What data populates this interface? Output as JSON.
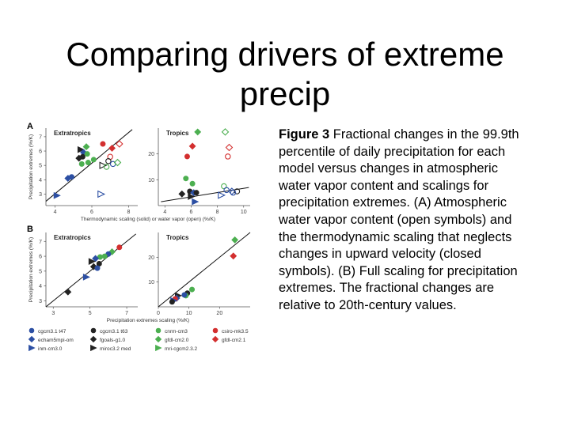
{
  "slide": {
    "title": "Comparing drivers of extreme precip"
  },
  "caption": {
    "label": "Figure 3",
    "text": " Fractional changes in the 99.9th percentile of daily precipitation for each model versus changes in atmospheric water vapor content and scalings for precipitation extremes. (A) Atmospheric water vapor content (open symbols) and the thermodynamic scaling that neglects changes in upward velocity (closed symbols). (B) Full scaling for precipitation extremes. The fractional changes are relative to 20th-century values."
  },
  "figure": {
    "panel_labels": [
      "A",
      "B"
    ],
    "legend": [
      {
        "label": "cgcm3.1 t47",
        "color": "#2c4fa3",
        "shape": "circle"
      },
      {
        "label": "cgcm3.1 t63",
        "color": "#222222",
        "shape": "circle"
      },
      {
        "label": "cnrm-cm3",
        "color": "#4caf50",
        "shape": "circle"
      },
      {
        "label": "csiro-mk3.5",
        "color": "#d32f2f",
        "shape": "circle"
      },
      {
        "label": "echam5mpi-om",
        "color": "#2c4fa3",
        "shape": "diamond"
      },
      {
        "label": "fgoals-g1.0",
        "color": "#222222",
        "shape": "diamond"
      },
      {
        "label": "gfdl-cm2.0",
        "color": "#4caf50",
        "shape": "diamond"
      },
      {
        "label": "gfdl-cm2.1",
        "color": "#d32f2f",
        "shape": "diamond"
      },
      {
        "label": "inm-cm3.0",
        "color": "#2c4fa3",
        "shape": "triangle"
      },
      {
        "label": "miroc3.2 med",
        "color": "#222222",
        "shape": "triangle"
      },
      {
        "label": "mri-cgcm2.3.2",
        "color": "#4caf50",
        "shape": "triangle"
      }
    ]
  },
  "chart_data": [
    {
      "type": "scatter",
      "panel": "A",
      "title": "Extratropics",
      "ylabel": "Precipitation extremes (%/K)",
      "xlim": [
        3.5,
        8.5
      ],
      "ylim": [
        2.2,
        7.6
      ],
      "xticks": [
        4,
        6,
        8
      ],
      "yticks": [
        3,
        4,
        5,
        6,
        7
      ],
      "fit_line": {
        "from": [
          3.5,
          2.5
        ],
        "to": [
          8.2,
          7.5
        ]
      },
      "series": [
        {
          "filled": true,
          "points": [
            {
              "x": 5.4,
              "y": 6.1,
              "c": "#222222",
              "s": "triangle"
            },
            {
              "x": 5.55,
              "y": 5.9,
              "c": "#2c4fa3",
              "s": "diamond"
            },
            {
              "x": 5.75,
              "y": 5.8,
              "c": "#4caf50",
              "s": "circle"
            },
            {
              "x": 5.7,
              "y": 6.3,
              "c": "#4caf50",
              "s": "diamond"
            },
            {
              "x": 5.5,
              "y": 5.6,
              "c": "#222222",
              "s": "circle"
            },
            {
              "x": 5.3,
              "y": 5.5,
              "c": "#222222",
              "s": "diamond"
            },
            {
              "x": 5.45,
              "y": 5.1,
              "c": "#4caf50",
              "s": "circle"
            },
            {
              "x": 5.8,
              "y": 5.2,
              "c": "#4caf50",
              "s": "circle"
            },
            {
              "x": 4.9,
              "y": 4.2,
              "c": "#2c4fa3",
              "s": "circle"
            },
            {
              "x": 4.7,
              "y": 4.1,
              "c": "#2c4fa3",
              "s": "diamond"
            },
            {
              "x": 6.6,
              "y": 6.5,
              "c": "#d32f2f",
              "s": "circle"
            },
            {
              "x": 7.1,
              "y": 6.2,
              "c": "#d32f2f",
              "s": "diamond"
            },
            {
              "x": 6.1,
              "y": 5.4,
              "c": "#4caf50",
              "s": "circle"
            },
            {
              "x": 4.1,
              "y": 2.9,
              "c": "#2c4fa3",
              "s": "triangle"
            }
          ]
        },
        {
          "filled": false,
          "points": [
            {
              "x": 7.5,
              "y": 6.5,
              "c": "#d32f2f",
              "s": "diamond"
            },
            {
              "x": 7.0,
              "y": 5.6,
              "c": "#d32f2f",
              "s": "circle"
            },
            {
              "x": 6.9,
              "y": 5.3,
              "c": "#222222",
              "s": "circle"
            },
            {
              "x": 7.15,
              "y": 5.1,
              "c": "#2c4fa3",
              "s": "circle"
            },
            {
              "x": 7.4,
              "y": 5.2,
              "c": "#4caf50",
              "s": "diamond"
            },
            {
              "x": 6.6,
              "y": 5.0,
              "c": "#222222",
              "s": "triangle"
            },
            {
              "x": 6.8,
              "y": 4.9,
              "c": "#4caf50",
              "s": "circle"
            },
            {
              "x": 6.5,
              "y": 3.0,
              "c": "#2c4fa3",
              "s": "triangle"
            }
          ]
        }
      ]
    },
    {
      "type": "scatter",
      "panel": "A",
      "title": "Tropics",
      "xlabel": "Thermodynamic scaling (solid) or water vapor (open) (%/K)",
      "xlim": [
        3.5,
        10.5
      ],
      "ylim": [
        0,
        30
      ],
      "xticks": [
        4,
        6,
        8,
        10
      ],
      "yticks": [
        10,
        20
      ],
      "fit_line": {
        "from": [
          3.7,
          1.5
        ],
        "to": [
          10.4,
          7
        ]
      },
      "series": [
        {
          "filled": true,
          "points": [
            {
              "x": 6.5,
              "y": 28.5,
              "c": "#4caf50",
              "s": "diamond"
            },
            {
              "x": 6.1,
              "y": 23,
              "c": "#d32f2f",
              "s": "diamond"
            },
            {
              "x": 5.7,
              "y": 19,
              "c": "#d32f2f",
              "s": "circle"
            },
            {
              "x": 5.6,
              "y": 10.5,
              "c": "#4caf50",
              "s": "circle"
            },
            {
              "x": 6.1,
              "y": 8.5,
              "c": "#4caf50",
              "s": "circle"
            },
            {
              "x": 5.9,
              "y": 5.5,
              "c": "#222222",
              "s": "circle"
            },
            {
              "x": 6.2,
              "y": 5,
              "c": "#2c4fa3",
              "s": "diamond"
            },
            {
              "x": 6.4,
              "y": 5,
              "c": "#222222",
              "s": "circle"
            },
            {
              "x": 6.0,
              "y": 3.5,
              "c": "#222222",
              "s": "triangle"
            },
            {
              "x": 5.3,
              "y": 4.5,
              "c": "#222222",
              "s": "diamond"
            },
            {
              "x": 6.3,
              "y": 1.5,
              "c": "#2c4fa3",
              "s": "triangle"
            }
          ]
        },
        {
          "filled": false,
          "points": [
            {
              "x": 8.6,
              "y": 28.5,
              "c": "#4caf50",
              "s": "diamond"
            },
            {
              "x": 8.9,
              "y": 22.5,
              "c": "#d32f2f",
              "s": "diamond"
            },
            {
              "x": 8.8,
              "y": 19,
              "c": "#d32f2f",
              "s": "circle"
            },
            {
              "x": 8.5,
              "y": 7.5,
              "c": "#4caf50",
              "s": "circle"
            },
            {
              "x": 8.7,
              "y": 6,
              "c": "#2c4fa3",
              "s": "circle"
            },
            {
              "x": 9.1,
              "y": 5.5,
              "c": "#2c4fa3",
              "s": "diamond"
            },
            {
              "x": 9.5,
              "y": 5.5,
              "c": "#222222",
              "s": "circle"
            },
            {
              "x": 9.2,
              "y": 5,
              "c": "#2c4fa3",
              "s": "circle"
            },
            {
              "x": 8.3,
              "y": 4,
              "c": "#2c4fa3",
              "s": "triangle"
            }
          ]
        }
      ]
    },
    {
      "type": "scatter",
      "panel": "B",
      "title": "Extratropics",
      "ylabel": "Precipitation extremes (%/K)",
      "xlim": [
        2.6,
        7.6
      ],
      "ylim": [
        2.6,
        7.6
      ],
      "xticks": [
        3,
        5,
        7
      ],
      "yticks": [
        3,
        4,
        5,
        6,
        7
      ],
      "fit_line": {
        "from": [
          2.6,
          2.6
        ],
        "to": [
          7.5,
          7.5
        ]
      },
      "series": [
        {
          "filled": true,
          "points": [
            {
              "x": 6.6,
              "y": 6.6,
              "c": "#d32f2f",
              "s": "circle"
            },
            {
              "x": 6.2,
              "y": 6.3,
              "c": "#4caf50",
              "s": "diamond"
            },
            {
              "x": 6.0,
              "y": 6.15,
              "c": "#2c4fa3",
              "s": "circle"
            },
            {
              "x": 5.8,
              "y": 6.0,
              "c": "#4caf50",
              "s": "circle"
            },
            {
              "x": 5.55,
              "y": 5.95,
              "c": "#4caf50",
              "s": "circle"
            },
            {
              "x": 5.3,
              "y": 5.85,
              "c": "#2c4fa3",
              "s": "diamond"
            },
            {
              "x": 5.1,
              "y": 5.65,
              "c": "#222222",
              "s": "triangle"
            },
            {
              "x": 5.5,
              "y": 5.5,
              "c": "#222222",
              "s": "circle"
            },
            {
              "x": 5.2,
              "y": 5.3,
              "c": "#222222",
              "s": "diamond"
            },
            {
              "x": 5.4,
              "y": 5.2,
              "c": "#2c4fa3",
              "s": "circle"
            },
            {
              "x": 4.8,
              "y": 4.6,
              "c": "#2c4fa3",
              "s": "triangle"
            },
            {
              "x": 3.8,
              "y": 3.6,
              "c": "#222222",
              "s": "diamond"
            }
          ]
        }
      ]
    },
    {
      "type": "scatter",
      "panel": "B",
      "title": "Tropics",
      "xlabel": "Precipitation extremes scaling (%/K)",
      "xlim": [
        0,
        30
      ],
      "ylim": [
        0,
        30
      ],
      "xticks": [
        0,
        10,
        20
      ],
      "yticks": [
        10,
        20
      ],
      "fit_line": {
        "from": [
          0,
          0
        ],
        "to": [
          30,
          30
        ]
      },
      "series": [
        {
          "filled": true,
          "points": [
            {
              "x": 25,
              "y": 27,
              "c": "#4caf50",
              "s": "diamond"
            },
            {
              "x": 24.5,
              "y": 20.5,
              "c": "#d32f2f",
              "s": "diamond"
            },
            {
              "x": 11,
              "y": 7,
              "c": "#4caf50",
              "s": "circle"
            },
            {
              "x": 9.5,
              "y": 5.5,
              "c": "#222222",
              "s": "circle"
            },
            {
              "x": 9,
              "y": 4.5,
              "c": "#4caf50",
              "s": "circle"
            },
            {
              "x": 8.5,
              "y": 4.8,
              "c": "#2c4fa3",
              "s": "circle"
            },
            {
              "x": 6.5,
              "y": 4.5,
              "c": "#222222",
              "s": "triangle"
            },
            {
              "x": 6.0,
              "y": 3.5,
              "c": "#2c4fa3",
              "s": "diamond"
            },
            {
              "x": 5.5,
              "y": 3.2,
              "c": "#d32f2f",
              "s": "circle"
            },
            {
              "x": 5.0,
              "y": 2.5,
              "c": "#2c4fa3",
              "s": "triangle"
            },
            {
              "x": 4.5,
              "y": 2.0,
              "c": "#222222",
              "s": "circle"
            }
          ]
        }
      ]
    }
  ]
}
